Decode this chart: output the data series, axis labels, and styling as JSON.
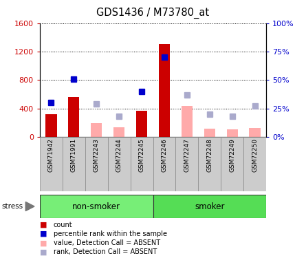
{
  "title": "GDS1436 / M73780_at",
  "samples": [
    "GSM71942",
    "GSM71991",
    "GSM72243",
    "GSM72244",
    "GSM72245",
    "GSM72246",
    "GSM72247",
    "GSM72248",
    "GSM72249",
    "GSM72250"
  ],
  "count_values": [
    320,
    560,
    null,
    null,
    370,
    1310,
    null,
    null,
    null,
    null
  ],
  "count_absent_values": [
    null,
    null,
    190,
    130,
    null,
    null,
    430,
    110,
    100,
    120
  ],
  "rank_present_pct": [
    30,
    51,
    null,
    null,
    40,
    70,
    null,
    null,
    null,
    null
  ],
  "rank_absent_pct": [
    null,
    null,
    29,
    18,
    null,
    null,
    37,
    20,
    18,
    27
  ],
  "ylim_left": [
    0,
    1600
  ],
  "ylim_right": [
    0,
    100
  ],
  "yticks_left": [
    0,
    400,
    800,
    1200,
    1600
  ],
  "yticks_right": [
    0,
    25,
    50,
    75,
    100
  ],
  "yticklabels_right": [
    "0%",
    "25%",
    "50%",
    "75%",
    "100%"
  ],
  "groups": [
    {
      "label": "non-smoker",
      "start": 0,
      "end": 5
    },
    {
      "label": "smoker",
      "start": 5,
      "end": 10
    }
  ],
  "stress_label": "stress",
  "color_count": "#cc0000",
  "color_rank_present": "#0000cc",
  "color_count_absent": "#ffaaaa",
  "color_rank_absent": "#aaaacc",
  "bar_width": 0.5,
  "group_color_1": "#77ee77",
  "group_color_2": "#55dd55",
  "tick_area_color": "#cccccc",
  "background_color": "#ffffff",
  "legend_items": [
    {
      "color": "#cc0000",
      "label": "count"
    },
    {
      "color": "#0000cc",
      "label": "percentile rank within the sample"
    },
    {
      "color": "#ffaaaa",
      "label": "value, Detection Call = ABSENT"
    },
    {
      "color": "#aaaacc",
      "label": "rank, Detection Call = ABSENT"
    }
  ]
}
